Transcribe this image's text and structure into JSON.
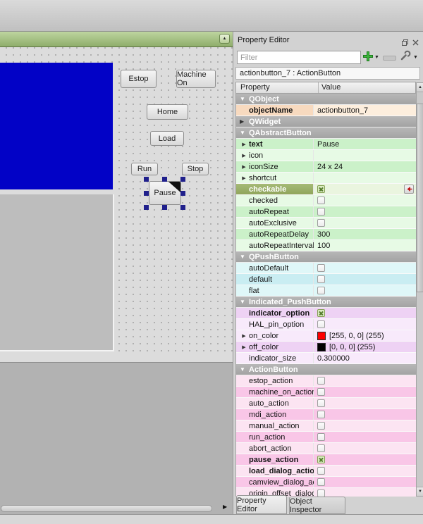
{
  "canvas": {
    "buttons": [
      {
        "label": "Estop"
      },
      {
        "label": "Machine On"
      },
      {
        "label": "Home"
      },
      {
        "label": "Load"
      },
      {
        "label": "Run"
      },
      {
        "label": "Stop"
      }
    ],
    "selected_button": {
      "label": "Pause"
    }
  },
  "panel": {
    "title": "Property Editor",
    "filter_placeholder": "Filter",
    "object_label": "actionbutton_7 : ActionButton",
    "columns": {
      "property": "Property",
      "value": "Value"
    },
    "tabs": [
      {
        "label": "Property Editor",
        "active": true
      },
      {
        "label": "Object Inspector",
        "active": false
      }
    ],
    "rows": [
      {
        "kind": "group",
        "label": "QObject",
        "state": "expanded"
      },
      {
        "kind": "prop",
        "label": "objectName",
        "value": "actionbutton_7",
        "bold": true,
        "theme": "peach"
      },
      {
        "kind": "group",
        "label": "QWidget",
        "state": "collapsed"
      },
      {
        "kind": "group",
        "label": "QAbstractButton",
        "state": "expanded"
      },
      {
        "kind": "prop",
        "label": "text",
        "value": "Pause",
        "bold": true,
        "expandable": true,
        "theme": "green-dark"
      },
      {
        "kind": "prop",
        "label": "icon",
        "value": "",
        "expandable": true,
        "theme": "green-light"
      },
      {
        "kind": "prop",
        "label": "iconSize",
        "value": "24 x 24",
        "expandable": true,
        "theme": "green-dark"
      },
      {
        "kind": "prop",
        "label": "shortcut",
        "value": "",
        "expandable": true,
        "theme": "green-light"
      },
      {
        "kind": "prop",
        "label": "checkable",
        "checkbox": "checked",
        "bold": true,
        "selected": true,
        "reset": true,
        "theme": "green-dark"
      },
      {
        "kind": "prop",
        "label": "checked",
        "checkbox": "unchecked",
        "theme": "green-light"
      },
      {
        "kind": "prop",
        "label": "autoRepeat",
        "checkbox": "unchecked",
        "theme": "green-dark"
      },
      {
        "kind": "prop",
        "label": "autoExclusive",
        "checkbox": "unchecked",
        "theme": "green-light"
      },
      {
        "kind": "prop",
        "label": "autoRepeatDelay",
        "value": "300",
        "theme": "green-dark"
      },
      {
        "kind": "prop",
        "label": "autoRepeatInterval",
        "value": "100",
        "theme": "green-light"
      },
      {
        "kind": "group",
        "label": "QPushButton",
        "state": "expanded"
      },
      {
        "kind": "prop",
        "label": "autoDefault",
        "checkbox": "unchecked",
        "theme": "cyan-light"
      },
      {
        "kind": "prop",
        "label": "default",
        "checkbox": "unchecked",
        "theme": "cyan-dark"
      },
      {
        "kind": "prop",
        "label": "flat",
        "checkbox": "unchecked",
        "theme": "cyan-light"
      },
      {
        "kind": "group",
        "label": "Indicated_PushButton",
        "state": "expanded"
      },
      {
        "kind": "prop",
        "label": "indicator_option",
        "checkbox": "checked",
        "bold": true,
        "theme": "lav-dark"
      },
      {
        "kind": "prop",
        "label": "HAL_pin_option",
        "checkbox": "unchecked",
        "theme": "lav-light"
      },
      {
        "kind": "prop",
        "label": "on_color",
        "value": "[255, 0, 0] (255)",
        "swatch": "#ff0000",
        "expandable": true,
        "theme": "lav-light"
      },
      {
        "kind": "prop",
        "label": "off_color",
        "value": "[0, 0, 0] (255)",
        "swatch": "#000000",
        "expandable": true,
        "theme": "lav-dark"
      },
      {
        "kind": "prop",
        "label": "indicator_size",
        "value": "0.300000",
        "theme": "lav-light"
      },
      {
        "kind": "group",
        "label": "ActionButton",
        "state": "expanded"
      },
      {
        "kind": "prop",
        "label": "estop_action",
        "checkbox": "unchecked",
        "theme": "pink-light"
      },
      {
        "kind": "prop",
        "label": "machine_on_action",
        "checkbox": "unchecked",
        "theme": "pink-dark"
      },
      {
        "kind": "prop",
        "label": "auto_action",
        "checkbox": "unchecked",
        "theme": "pink-light"
      },
      {
        "kind": "prop",
        "label": "mdi_action",
        "checkbox": "unchecked",
        "theme": "pink-dark"
      },
      {
        "kind": "prop",
        "label": "manual_action",
        "checkbox": "unchecked",
        "theme": "pink-light"
      },
      {
        "kind": "prop",
        "label": "run_action",
        "checkbox": "unchecked",
        "theme": "pink-dark"
      },
      {
        "kind": "prop",
        "label": "abort_action",
        "checkbox": "unchecked",
        "theme": "pink-light"
      },
      {
        "kind": "prop",
        "label": "pause_action",
        "checkbox": "checked",
        "bold": true,
        "theme": "pink-dark"
      },
      {
        "kind": "prop",
        "label": "load_dialog_action",
        "checkbox": "unchecked",
        "bold": true,
        "theme": "pink-light"
      },
      {
        "kind": "prop",
        "label": "camview_dialog_acti...",
        "checkbox": "unchecked",
        "theme": "pink-dark"
      },
      {
        "kind": "prop",
        "label": "origin_offset_dialog",
        "checkbox": "unchecked",
        "theme": "pink-light"
      }
    ]
  },
  "colors": {
    "form_widget_blue": "#0202c6",
    "titlebar_green": "#a8c386",
    "on_color": "#ff0000",
    "off_color": "#000000",
    "themes": {
      "peach": {
        "label": "#f8dabf",
        "value": "#fdeedd"
      },
      "green-dark": {
        "label": "#cbf1c9",
        "value": "#cbf1c9"
      },
      "green-light": {
        "label": "#e7fae5",
        "value": "#e7fae5"
      },
      "selected": {
        "label": "#9aaf68",
        "value": "#eaf5df"
      },
      "cyan-dark": {
        "label": "#c9edf2",
        "value": "#c9edf2"
      },
      "cyan-light": {
        "label": "#dff7f8",
        "value": "#dff7f8"
      },
      "lav-dark": {
        "label": "#eed2f4",
        "value": "#eed2f4"
      },
      "lav-light": {
        "label": "#f8eafb",
        "value": "#f8eafb"
      },
      "pink-dark": {
        "label": "#f9c6e7",
        "value": "#f9c6e7"
      },
      "pink-light": {
        "label": "#fce4f2",
        "value": "#fce4f2"
      }
    }
  }
}
